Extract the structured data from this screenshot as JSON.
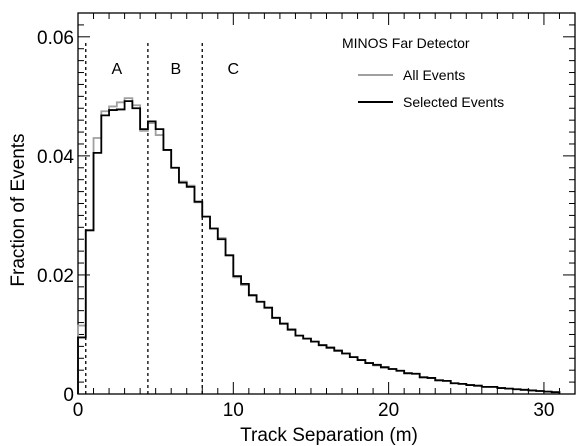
{
  "chart_data": {
    "type": "line",
    "title": "",
    "xlabel": "Track Separation (m)",
    "ylabel": "Fraction of Events",
    "xlim": [
      0,
      32
    ],
    "ylim": [
      0,
      0.064
    ],
    "xticks": [
      0,
      10,
      20,
      30
    ],
    "xtick_labels": [
      "0",
      "10",
      "20",
      "30"
    ],
    "yticks": [
      0,
      0.02,
      0.04,
      0.06
    ],
    "ytick_labels": [
      "0",
      "0.02",
      "0.04",
      "0.06"
    ],
    "grid": false,
    "legend_position": "top-right",
    "legend_title": "MINOS Far Detector",
    "bin_width": 0.5,
    "series": [
      {
        "name": "All Events",
        "color": "#a0a0a0",
        "values": [
          0.0115,
          0.0275,
          0.043,
          0.0475,
          0.0483,
          0.049,
          0.0497,
          0.0485,
          0.0442,
          0.0455,
          0.0435,
          0.041,
          0.038,
          0.0357,
          0.035,
          0.0322,
          0.0298,
          0.0278,
          0.0262,
          0.0233,
          0.0196,
          0.0183,
          0.0165,
          0.0155,
          0.0145,
          0.0128,
          0.0119,
          0.0109,
          0.0098,
          0.0093,
          0.0088,
          0.0082,
          0.0077,
          0.0072,
          0.0068,
          0.0062,
          0.0057,
          0.0052,
          0.0048,
          0.0044,
          0.0042,
          0.0039,
          0.0034,
          0.0034,
          0.0028,
          0.0027,
          0.0023,
          0.0022,
          0.0018,
          0.0017,
          0.0015,
          0.0014,
          0.0012,
          0.0012,
          0.001,
          0.0009,
          0.0008,
          0.0007,
          0.0006,
          0.0005,
          0.0004,
          0.0003
        ]
      },
      {
        "name": "Selected Events",
        "color": "#000000",
        "values": [
          0.0095,
          0.0275,
          0.0405,
          0.0468,
          0.0477,
          0.0478,
          0.0492,
          0.048,
          0.0445,
          0.0458,
          0.0445,
          0.041,
          0.038,
          0.0355,
          0.0348,
          0.0323,
          0.0298,
          0.0278,
          0.026,
          0.0233,
          0.0198,
          0.0185,
          0.0166,
          0.0155,
          0.0145,
          0.0128,
          0.0118,
          0.0108,
          0.0098,
          0.0093,
          0.0088,
          0.0082,
          0.0078,
          0.0073,
          0.0068,
          0.0062,
          0.0057,
          0.0052,
          0.0049,
          0.0045,
          0.0042,
          0.0039,
          0.0035,
          0.0034,
          0.0028,
          0.0027,
          0.0023,
          0.0022,
          0.0018,
          0.0017,
          0.0015,
          0.0014,
          0.0012,
          0.0012,
          0.001,
          0.0009,
          0.0008,
          0.0007,
          0.0006,
          0.0005,
          0.0004,
          0.0003
        ]
      }
    ],
    "region_boundaries": [
      0.5,
      4.5,
      8.0
    ],
    "regions": [
      {
        "label": "A",
        "x": 2.5
      },
      {
        "label": "B",
        "x": 6.3
      },
      {
        "label": "C",
        "x": 10.0
      }
    ]
  }
}
